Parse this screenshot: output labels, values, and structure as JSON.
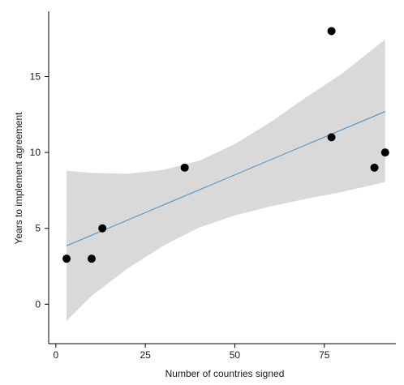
{
  "chart_data": {
    "type": "scatter",
    "title": "",
    "xlabel": "Number of countries signed",
    "ylabel": "Years to implement agreement",
    "xlim": [
      -2,
      95
    ],
    "ylim": [
      -2.6,
      19.3
    ],
    "xticks": [
      0,
      25,
      50,
      75
    ],
    "yticks": [
      0,
      5,
      10,
      15
    ],
    "xtick_labels": [
      "0",
      "25",
      "50",
      "75"
    ],
    "ytick_labels": [
      "0",
      "5",
      "10",
      "15"
    ],
    "grid": false,
    "legend": "none",
    "points": [
      {
        "x": 3,
        "y": 3
      },
      {
        "x": 10,
        "y": 3
      },
      {
        "x": 13,
        "y": 5
      },
      {
        "x": 36,
        "y": 9
      },
      {
        "x": 77,
        "y": 18
      },
      {
        "x": 77,
        "y": 11
      },
      {
        "x": 89,
        "y": 9
      },
      {
        "x": 92,
        "y": 10
      }
    ],
    "fit_line": {
      "x": [
        3,
        92
      ],
      "y": [
        3.85,
        12.7
      ]
    },
    "confidence_band": {
      "x": [
        3,
        10,
        20,
        30,
        40,
        50,
        60,
        70,
        80,
        92
      ],
      "lower": [
        -1.1,
        0.55,
        2.35,
        3.85,
        5.05,
        5.85,
        6.45,
        6.95,
        7.4,
        8.05
      ],
      "upper": [
        8.8,
        8.65,
        8.6,
        8.85,
        9.45,
        10.55,
        12.0,
        13.65,
        15.2,
        17.45
      ]
    },
    "colors": {
      "points": "#000000",
      "fit_line": "#4f95c9",
      "band": "#d9d9d9",
      "axes": "#000000"
    }
  }
}
